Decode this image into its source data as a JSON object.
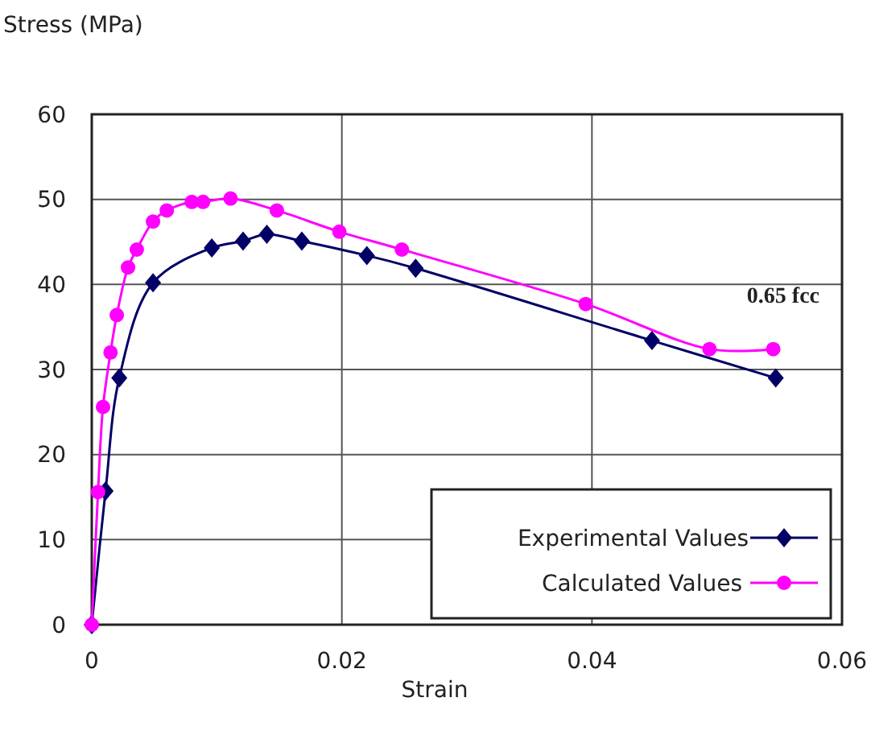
{
  "chart_data": {
    "type": "line",
    "xlabel": "Strain",
    "ylabel": "Stress (MPa)",
    "xlim": [
      0,
      0.06
    ],
    "xticks": [
      0,
      0.02,
      0.04,
      0.06
    ],
    "ylim": [
      0,
      60
    ],
    "yticks": [
      0,
      10,
      20,
      30,
      40,
      50,
      60
    ],
    "grid": true,
    "legend": "bottom right",
    "line_style": "solid",
    "annotations": [
      "0.65 fcc"
    ],
    "series": [
      {
        "name": "Experimental Values",
        "color": "#000066",
        "marker": "diamond",
        "x": [
          0,
          0.0011,
          0.0022,
          0.0049,
          0.0096,
          0.0121,
          0.014,
          0.0168,
          0.022,
          0.0259,
          0.0448,
          0.0547
        ],
        "values": [
          0,
          15.7,
          29,
          40.2,
          44.3,
          45.1,
          45.9,
          45.1,
          43.4,
          41.9,
          33.4,
          29
        ]
      },
      {
        "name": "Calculated Values",
        "color": "#ff00ff",
        "marker": "circle",
        "x": [
          0,
          0.0005,
          0.0009,
          0.0015,
          0.002,
          0.0029,
          0.0036,
          0.0049,
          0.006,
          0.008,
          0.0089,
          0.0111,
          0.0148,
          0.0198,
          0.0248,
          0.0395,
          0.0494,
          0.0545
        ],
        "values": [
          0,
          15.6,
          25.6,
          32,
          36.4,
          42,
          44.1,
          47.4,
          48.7,
          49.7,
          49.7,
          50.1,
          48.7,
          46.2,
          44.1,
          37.7,
          32.4,
          32.4
        ]
      }
    ]
  }
}
